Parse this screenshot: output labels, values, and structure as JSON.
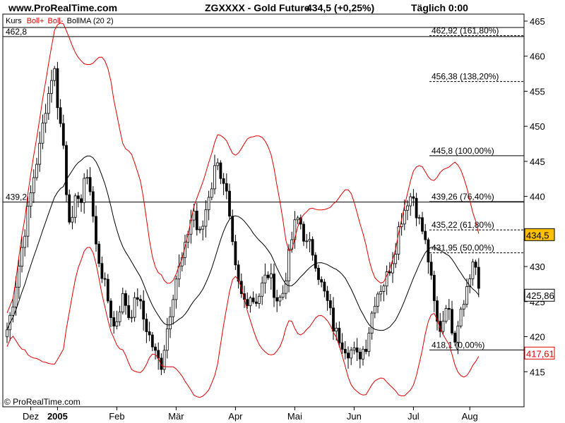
{
  "header": {
    "site": "www.ProRealTime.com",
    "title": "ZGXXXX - Gold Future",
    "price": "434,5 (+0,25%)",
    "period": "Täglich  0:00"
  },
  "legend": {
    "kurs": "Kurs",
    "boll_upper": "Boll+",
    "boll_lower": "Boll-",
    "bollma": "BollMA (20 2)"
  },
  "copyright": "© ProRealTime.com",
  "colors": {
    "candles": "#000000",
    "bollinger": "#e00000",
    "ma": "#000000",
    "price_tag": "#ffc000",
    "lower_tag": "#e00000"
  },
  "chart_data": {
    "type": "candlestick",
    "instrument": "Gold Future",
    "ylim": [
      410,
      466
    ],
    "y_ticks": [
      415,
      420,
      425,
      430,
      435,
      440,
      445,
      450,
      455,
      460,
      465
    ],
    "x_labels": [
      {
        "label": "Dez",
        "bold": false,
        "i": 8
      },
      {
        "label": "2005",
        "bold": true,
        "i": 17
      },
      {
        "label": "Feb",
        "bold": false,
        "i": 37
      },
      {
        "label": "Mär",
        "bold": false,
        "i": 57
      },
      {
        "label": "Apr",
        "bold": false,
        "i": 77
      },
      {
        "label": "Mai",
        "bold": false,
        "i": 97
      },
      {
        "label": "Jun",
        "bold": false,
        "i": 117
      },
      {
        "label": "Jul",
        "bold": false,
        "i": 137
      },
      {
        "label": "Aug",
        "bold": false,
        "i": 156
      }
    ],
    "close_anchors": [
      [
        0,
        421
      ],
      [
        1,
        424
      ],
      [
        2,
        428
      ],
      [
        3,
        432
      ],
      [
        4,
        436
      ],
      [
        5,
        440
      ],
      [
        6,
        444
      ],
      [
        7,
        447
      ],
      [
        8,
        452
      ],
      [
        9,
        455
      ],
      [
        10,
        459
      ],
      [
        11,
        452
      ],
      [
        12,
        448
      ],
      [
        13,
        438
      ],
      [
        14,
        436
      ],
      [
        15,
        441
      ],
      [
        16,
        439
      ],
      [
        17,
        444
      ],
      [
        18,
        440
      ],
      [
        19,
        433
      ],
      [
        20,
        430
      ],
      [
        21,
        427
      ],
      [
        22,
        424
      ],
      [
        23,
        421
      ],
      [
        24,
        424
      ],
      [
        25,
        426
      ],
      [
        26,
        423
      ],
      [
        27,
        424
      ],
      [
        28,
        426
      ],
      [
        29,
        423
      ],
      [
        30,
        421
      ],
      [
        31,
        419
      ],
      [
        32,
        417
      ],
      [
        33,
        416
      ],
      [
        34,
        420
      ],
      [
        35,
        424
      ],
      [
        36,
        428
      ],
      [
        37,
        430
      ],
      [
        38,
        432
      ],
      [
        39,
        436
      ],
      [
        40,
        438
      ],
      [
        41,
        434
      ],
      [
        42,
        436
      ],
      [
        43,
        440
      ],
      [
        44,
        442
      ],
      [
        45,
        446
      ],
      [
        46,
        442
      ],
      [
        47,
        440
      ],
      [
        48,
        434
      ],
      [
        49,
        429
      ],
      [
        50,
        426
      ],
      [
        51,
        425
      ],
      [
        52,
        426
      ],
      [
        53,
        425
      ],
      [
        54,
        426
      ],
      [
        55,
        428
      ],
      [
        56,
        429
      ],
      [
        57,
        427
      ],
      [
        58,
        425
      ],
      [
        59,
        426
      ],
      [
        60,
        430
      ],
      [
        61,
        434
      ],
      [
        62,
        437
      ],
      [
        63,
        436
      ],
      [
        64,
        433
      ],
      [
        65,
        433
      ],
      [
        66,
        431
      ],
      [
        67,
        428
      ],
      [
        68,
        426
      ],
      [
        69,
        424
      ],
      [
        70,
        421
      ],
      [
        71,
        420
      ],
      [
        72,
        419
      ],
      [
        73,
        418
      ],
      [
        74,
        418
      ],
      [
        75,
        417
      ],
      [
        76,
        418
      ],
      [
        77,
        419
      ],
      [
        78,
        423
      ],
      [
        79,
        426
      ],
      [
        80,
        427
      ],
      [
        81,
        428
      ],
      [
        82,
        430
      ],
      [
        83,
        432
      ],
      [
        84,
        436
      ],
      [
        85,
        438
      ],
      [
        86,
        440
      ],
      [
        87,
        440
      ],
      [
        88,
        437
      ],
      [
        89,
        435
      ],
      [
        90,
        432
      ],
      [
        91,
        427
      ],
      [
        92,
        422
      ],
      [
        93,
        421
      ],
      [
        94,
        425
      ],
      [
        95,
        422
      ],
      [
        96,
        420
      ],
      [
        97,
        424
      ],
      [
        98,
        426
      ],
      [
        99,
        428
      ],
      [
        100,
        432
      ],
      [
        101,
        426
      ]
    ],
    "series": [
      {
        "name": "Kurs",
        "kind": "ohlc"
      },
      {
        "name": "Boll+",
        "kind": "line"
      },
      {
        "name": "Boll-",
        "kind": "line"
      },
      {
        "name": "BollMA (20 2)",
        "kind": "line"
      }
    ],
    "levels": [
      {
        "label": "462,8",
        "value": 462.8,
        "style": "solid",
        "side": "left"
      },
      {
        "label": "439,2",
        "value": 439.2,
        "style": "solid",
        "side": "left"
      },
      {
        "label": "462,92 (161,80%)",
        "value": 462.92,
        "style": "dashed"
      },
      {
        "label": "456,38 (138,20%)",
        "value": 456.38,
        "style": "dashed"
      },
      {
        "label": "445,8 (100,00%)",
        "value": 445.8,
        "style": "solid"
      },
      {
        "label": "439,26 (76,40%)",
        "value": 439.26,
        "style": "solid"
      },
      {
        "label": "435,22 (61,80%)",
        "value": 435.22,
        "style": "dashed"
      },
      {
        "label": "431,95 (50,00%)",
        "value": 431.95,
        "style": "dashed"
      },
      {
        "label": "418,1 (0,00%)",
        "value": 418.1,
        "style": "solid"
      }
    ],
    "price_tags": [
      {
        "label": "434,5",
        "value": 434.5,
        "kind": "last"
      },
      {
        "label": "425,86",
        "value": 425.86,
        "kind": "ma"
      },
      {
        "label": "417,61",
        "value": 417.61,
        "kind": "lower"
      }
    ]
  }
}
